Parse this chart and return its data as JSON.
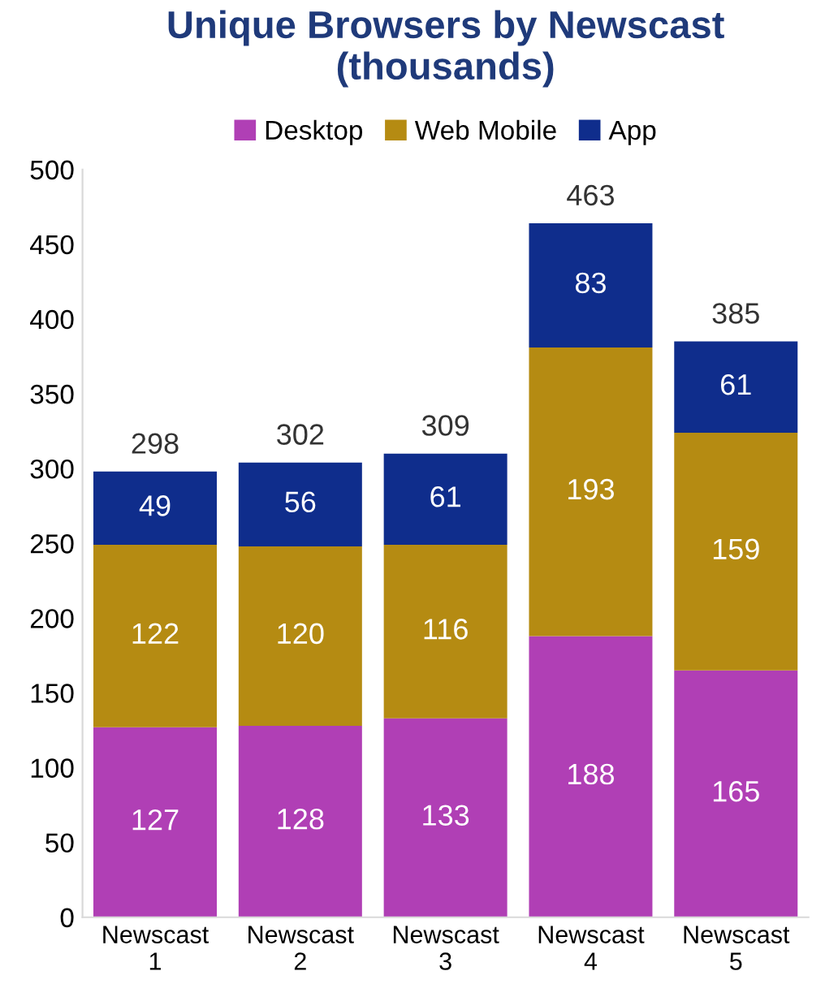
{
  "chart_data": {
    "type": "bar",
    "title": "Unique Browsers by Newscast\n(thousands)",
    "stacked": true,
    "categories": [
      "Newscast\n1",
      "Newscast\n2",
      "Newscast\n3",
      "Newscast\n4",
      "Newscast\n5"
    ],
    "series": [
      {
        "name": "Desktop",
        "color": "#b03fb5",
        "values": [
          127,
          128,
          133,
          188,
          165
        ]
      },
      {
        "name": "Web Mobile",
        "color": "#b58b12",
        "values": [
          122,
          120,
          116,
          193,
          159
        ]
      },
      {
        "name": "App",
        "color": "#0f2d8c",
        "values": [
          49,
          56,
          61,
          83,
          61
        ]
      }
    ],
    "totals": [
      "298",
      "302",
      "309",
      "463",
      "385"
    ],
    "ylim": [
      0,
      500
    ],
    "yticks": [
      0,
      50,
      100,
      150,
      200,
      250,
      300,
      350,
      400,
      450,
      500
    ],
    "data_labels": true,
    "legend": "top",
    "grid": false
  }
}
